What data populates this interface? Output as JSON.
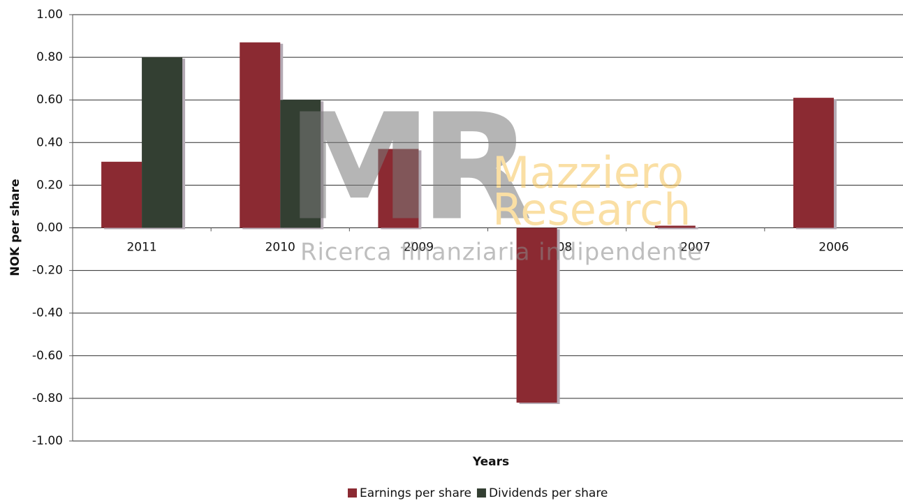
{
  "chart_data": {
    "type": "bar",
    "categories": [
      "2011",
      "2010",
      "2009",
      "2008",
      "2007",
      "2006"
    ],
    "series": [
      {
        "name": "Earnings per share",
        "color": "#8b2a32",
        "values": [
          0.31,
          0.87,
          0.37,
          -0.82,
          0.01,
          0.61
        ]
      },
      {
        "name": "Dividends per share",
        "color": "#333f32",
        "values": [
          0.8,
          0.6,
          null,
          null,
          null,
          null
        ]
      }
    ],
    "x_label": "Years",
    "y_label": "NOK per share",
    "ylim": [
      -1,
      1
    ],
    "yticks": [
      {
        "value": 1,
        "label": "1.00"
      },
      {
        "value": 0.8,
        "label": "0.80"
      },
      {
        "value": 0.6,
        "label": "0.60"
      },
      {
        "value": 0.4,
        "label": "0.40"
      },
      {
        "value": 0.2,
        "label": "0.20"
      },
      {
        "value": 0,
        "label": "0.00"
      },
      {
        "value": -0.2,
        "label": "-0.20"
      },
      {
        "value": -0.4,
        "label": "-0.40"
      },
      {
        "value": -0.6,
        "label": "-0.60"
      },
      {
        "value": -0.8,
        "label": "-0.80"
      },
      {
        "value": -1,
        "label": "-1.00"
      }
    ],
    "grid": true,
    "legend": "bottom",
    "watermark": {
      "logo": "MR",
      "name": [
        "Mazziero",
        "Research"
      ],
      "tagline": "Ricerca finanziaria indipendente"
    }
  }
}
